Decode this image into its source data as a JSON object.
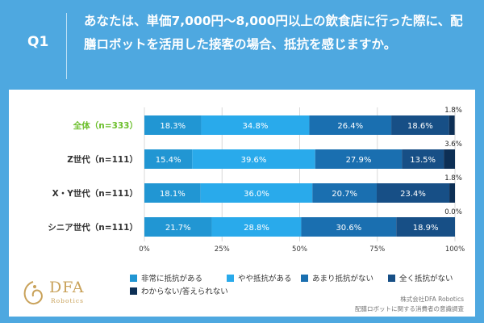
{
  "question": {
    "label": "Q1",
    "text": "あなたは、単価7,000円〜8,000円以上の飲食店に行った際に、配膳ロボットを活用した接客の場合、抵抗を感じますか。"
  },
  "brand": {
    "logo_main": "DFA",
    "logo_sub": "Robotics"
  },
  "source": {
    "line1": "株式会社DFA Robotics",
    "line2": "配膳ロボットに関する消費者の意識調査"
  },
  "colors": {
    "background": "#4ea8e0",
    "highlight_label": "#6cbf2c",
    "segments": [
      "#2196d3",
      "#29aaeb",
      "#1a6fb0",
      "#174f86",
      "#0d2f55"
    ]
  },
  "chart_data": {
    "type": "bar",
    "orientation": "horizontal",
    "stacked": true,
    "percent": true,
    "categories": [
      "全体（n=333）",
      "Z世代（n=111）",
      "X・Y世代（n=111）",
      "シニア世代（n=111）"
    ],
    "highlight_category": "全体（n=333）",
    "series": [
      {
        "name": "非常に抵抗がある",
        "values": [
          18.3,
          15.4,
          18.1,
          21.7
        ]
      },
      {
        "name": "やや抵抗がある",
        "values": [
          34.8,
          39.6,
          36.0,
          28.8
        ]
      },
      {
        "name": "あまり抵抗がない",
        "values": [
          26.4,
          27.9,
          20.7,
          30.6
        ]
      },
      {
        "name": "全く抵抗がない",
        "values": [
          18.6,
          13.5,
          23.4,
          18.9
        ]
      },
      {
        "name": "わからない/答えられない",
        "values": [
          1.8,
          3.6,
          1.8,
          0.0
        ]
      }
    ],
    "data_labels": [
      [
        "18.3%",
        "34.8%",
        "26.4%",
        "18.6%",
        "1.8%"
      ],
      [
        "15.4%",
        "39.6%",
        "27.9%",
        "13.5%",
        "3.6%"
      ],
      [
        "18.1%",
        "36.0%",
        "20.7%",
        "23.4%",
        "1.8%"
      ],
      [
        "21.7%",
        "28.8%",
        "30.6%",
        "18.9%",
        "0.0%"
      ]
    ],
    "xlim": [
      0,
      100
    ],
    "xticks": [
      "0%",
      "25%",
      "50%",
      "75%",
      "100%"
    ],
    "legend_position": "bottom",
    "grid": true
  }
}
